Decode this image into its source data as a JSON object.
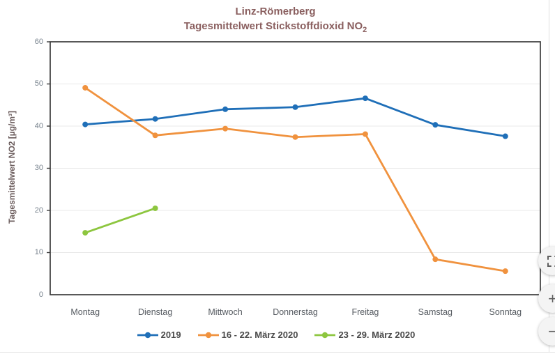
{
  "chart": {
    "title_line1": "Linz-Römerberg",
    "title_line2_main": "Tagesmittelwert Stickstoffdioxid NO",
    "title_line2_sub": "2",
    "y_axis_title": "Tagesmittelwert NO2 [µg/m³]"
  },
  "chart_data": {
    "type": "line",
    "title": "Linz-Römerberg",
    "subtitle": "Tagesmittelwert Stickstoffdioxid NO2",
    "xlabel": "",
    "ylabel": "Tagesmittelwert NO2 [µg/m³]",
    "ylim": [
      0,
      60
    ],
    "ytick_step": 10,
    "grid": true,
    "legend_position": "bottom",
    "categories": [
      "Montag",
      "Dienstag",
      "Mittwoch",
      "Donnerstag",
      "Freitag",
      "Samstag",
      "Sonntag"
    ],
    "series": [
      {
        "name": "2019",
        "color": "#1f6fb8",
        "values": [
          40.4,
          41.7,
          44.0,
          44.5,
          46.6,
          40.3,
          37.6
        ]
      },
      {
        "name": "16 - 22. März 2020",
        "color": "#f0923e",
        "values": [
          49.1,
          37.8,
          39.4,
          37.4,
          38.1,
          8.4,
          5.6
        ]
      },
      {
        "name": "23 - 29. März 2020",
        "color": "#8dc63f",
        "values": [
          14.7,
          20.5,
          null,
          null,
          null,
          null,
          null
        ]
      }
    ],
    "colors": {
      "title": "#8a5f5f",
      "gridline": "#e8e8e8",
      "frame": "#3c3c3c",
      "tick_label": "#76818c"
    }
  },
  "controls": {
    "fit_label": "fit-to-screen",
    "zoom_in_label": "+",
    "zoom_out_label": "−"
  }
}
